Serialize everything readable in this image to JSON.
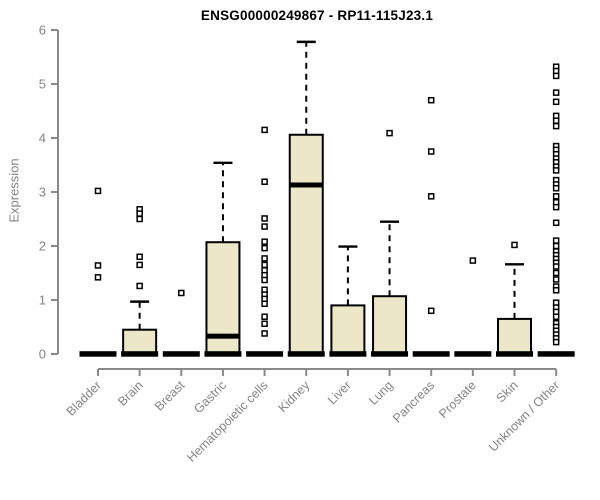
{
  "title": "ENSG00000249867 - RP11-115J23.1",
  "chart_data": {
    "type": "box",
    "title": "ENSG00000249867 - RP11-115J23.1",
    "xlabel": "",
    "ylabel": "Expression",
    "ylim": [
      0,
      6
    ],
    "yticks": [
      0,
      1,
      2,
      3,
      4,
      5,
      6
    ],
    "grid": false,
    "legend": "none",
    "categories": [
      "Bladder",
      "Brain",
      "Breast",
      "Gastric",
      "Hematopoietic cells",
      "Kidney",
      "Liver",
      "Lung",
      "Pancreas",
      "Prostate",
      "Skin",
      "Unknown / Other"
    ],
    "boxes": [
      {
        "category": "Bladder",
        "flat": true,
        "q1": 0,
        "median": 0,
        "q3": 0,
        "whisker_high": 0,
        "outliers": [
          3.02,
          1.64,
          1.42
        ]
      },
      {
        "category": "Brain",
        "flat": false,
        "q1": 0,
        "median": 0,
        "q3": 0.45,
        "whisker_high": 0.97,
        "outliers": [
          2.68,
          2.6,
          2.5,
          1.8,
          1.65,
          1.26
        ]
      },
      {
        "category": "Breast",
        "flat": true,
        "q1": 0,
        "median": 0,
        "q3": 0,
        "whisker_high": 0,
        "outliers": [
          1.13
        ]
      },
      {
        "category": "Gastric",
        "flat": false,
        "q1": 0,
        "median": 0.33,
        "q3": 2.07,
        "whisker_high": 3.54,
        "outliers": []
      },
      {
        "category": "Hematopoietic cells",
        "flat": true,
        "q1": 0,
        "median": 0,
        "q3": 0,
        "whisker_high": 0,
        "outliers": [
          4.15,
          3.19,
          2.51,
          2.36,
          2.08,
          1.96,
          1.77,
          1.65,
          1.55,
          1.46,
          1.37,
          1.19,
          1.1,
          1.02,
          0.93,
          0.69,
          0.56,
          0.38
        ]
      },
      {
        "category": "Kidney",
        "flat": false,
        "q1": 0,
        "median": 3.13,
        "q3": 4.06,
        "whisker_high": 5.78,
        "outliers": []
      },
      {
        "category": "Liver",
        "flat": false,
        "q1": 0,
        "median": 0,
        "q3": 0.9,
        "whisker_high": 1.99,
        "outliers": []
      },
      {
        "category": "Lung",
        "flat": false,
        "q1": 0,
        "median": 0,
        "q3": 1.07,
        "whisker_high": 2.45,
        "outliers": [
          4.09
        ]
      },
      {
        "category": "Pancreas",
        "flat": true,
        "q1": 0,
        "median": 0,
        "q3": 0,
        "whisker_high": 0,
        "outliers": [
          4.7,
          3.75,
          2.92,
          0.8
        ]
      },
      {
        "category": "Prostate",
        "flat": true,
        "q1": 0,
        "median": 0,
        "q3": 0,
        "whisker_high": 0,
        "outliers": [
          1.73
        ]
      },
      {
        "category": "Skin",
        "flat": false,
        "q1": 0,
        "median": 0,
        "q3": 0.65,
        "whisker_high": 1.66,
        "outliers": [
          2.02
        ]
      },
      {
        "category": "Unknown / Other",
        "flat": true,
        "q1": 0,
        "median": 0,
        "q3": 0,
        "whisker_high": 0,
        "outliers": [
          5.32,
          5.24,
          5.15,
          4.84,
          4.67,
          4.41,
          4.32,
          4.22,
          3.85,
          3.78,
          3.7,
          3.62,
          3.55,
          3.47,
          3.4,
          3.22,
          3.14,
          3.07,
          2.92,
          2.81,
          2.72,
          2.43,
          2.1,
          2.0,
          1.9,
          1.83,
          1.76,
          1.69,
          1.62,
          1.5,
          1.38,
          1.25,
          1.18,
          0.95,
          0.86,
          0.78,
          0.69,
          0.57,
          0.5,
          0.43,
          0.36,
          0.29,
          0.22
        ]
      }
    ],
    "colors": {
      "box_fill": "#EDE7C9",
      "box_border": "#000000",
      "median": "#000000",
      "whisker": "#000000",
      "outlier_stroke": "#000000",
      "axis": "#8a8a8a",
      "tick_label": "#848484",
      "title": "#000000",
      "background": "#ffffff"
    }
  }
}
